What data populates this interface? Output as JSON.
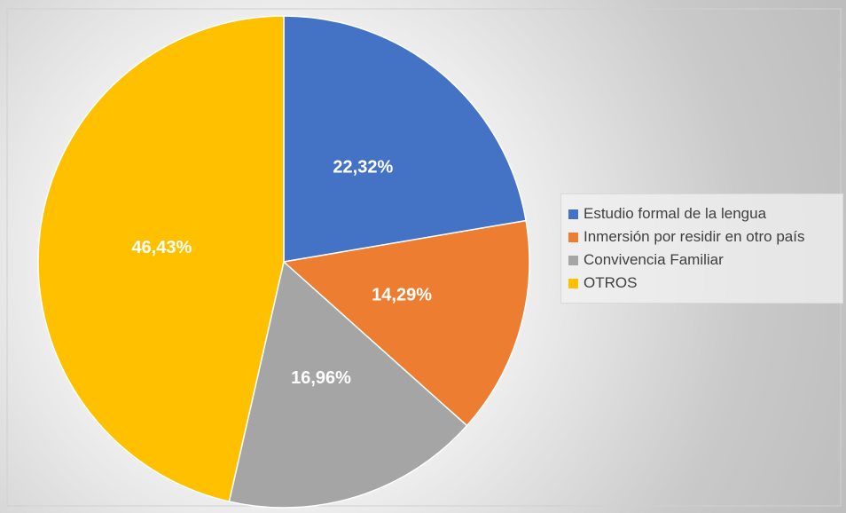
{
  "chart_data": {
    "type": "pie",
    "categories": [
      "Estudio formal de la lengua",
      "Inmersión por residir en otro país",
      "Convivencia Familiar",
      "OTROS"
    ],
    "values": [
      22.32,
      14.29,
      16.96,
      46.43
    ],
    "value_labels": [
      "22,32%",
      "14,29%",
      "16,96%",
      "46,43%"
    ],
    "colors": [
      "#4472c4",
      "#ed7d31",
      "#a5a5a5",
      "#ffc000"
    ],
    "legend": "right"
  }
}
